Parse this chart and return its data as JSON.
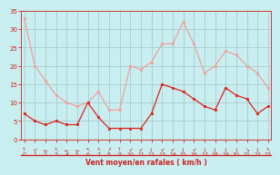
{
  "x": [
    0,
    1,
    2,
    3,
    4,
    5,
    6,
    7,
    8,
    9,
    10,
    11,
    12,
    13,
    14,
    15,
    16,
    17,
    18,
    19,
    20,
    21,
    22,
    23
  ],
  "wind_mean": [
    7,
    5,
    4,
    5,
    4,
    4,
    10,
    6,
    3,
    3,
    3,
    3,
    7,
    15,
    14,
    13,
    11,
    9,
    8,
    14,
    12,
    11,
    7,
    9
  ],
  "wind_gust": [
    33,
    20,
    16,
    12,
    10,
    9,
    10,
    13,
    8,
    8,
    20,
    19,
    21,
    26,
    26,
    32,
    26,
    18,
    20,
    24,
    23,
    20,
    18,
    14
  ],
  "mean_color": "#dd2222",
  "gust_color": "#f0a0a0",
  "bg_color": "#c8eef0",
  "grid_color": "#aacccc",
  "axis_color": "#cc2222",
  "xlabel": "Vent moyen/en rafales ( km/h )",
  "ylim": [
    0,
    35
  ],
  "yticks": [
    0,
    5,
    10,
    15,
    20,
    25,
    30,
    35
  ],
  "xticks": [
    0,
    1,
    2,
    3,
    4,
    5,
    6,
    7,
    8,
    9,
    10,
    11,
    12,
    13,
    14,
    15,
    16,
    17,
    18,
    19,
    20,
    21,
    22,
    23
  ],
  "arrows": [
    "↑",
    "↙",
    "←",
    "↖",
    "←",
    "←",
    "↖",
    "↖",
    "↗",
    "↑",
    "↙",
    "↙",
    "↓",
    "↙",
    "↙",
    "↓",
    "↙",
    "↓",
    "↓",
    "↓",
    "↓",
    "↘",
    "↓",
    "↖"
  ]
}
